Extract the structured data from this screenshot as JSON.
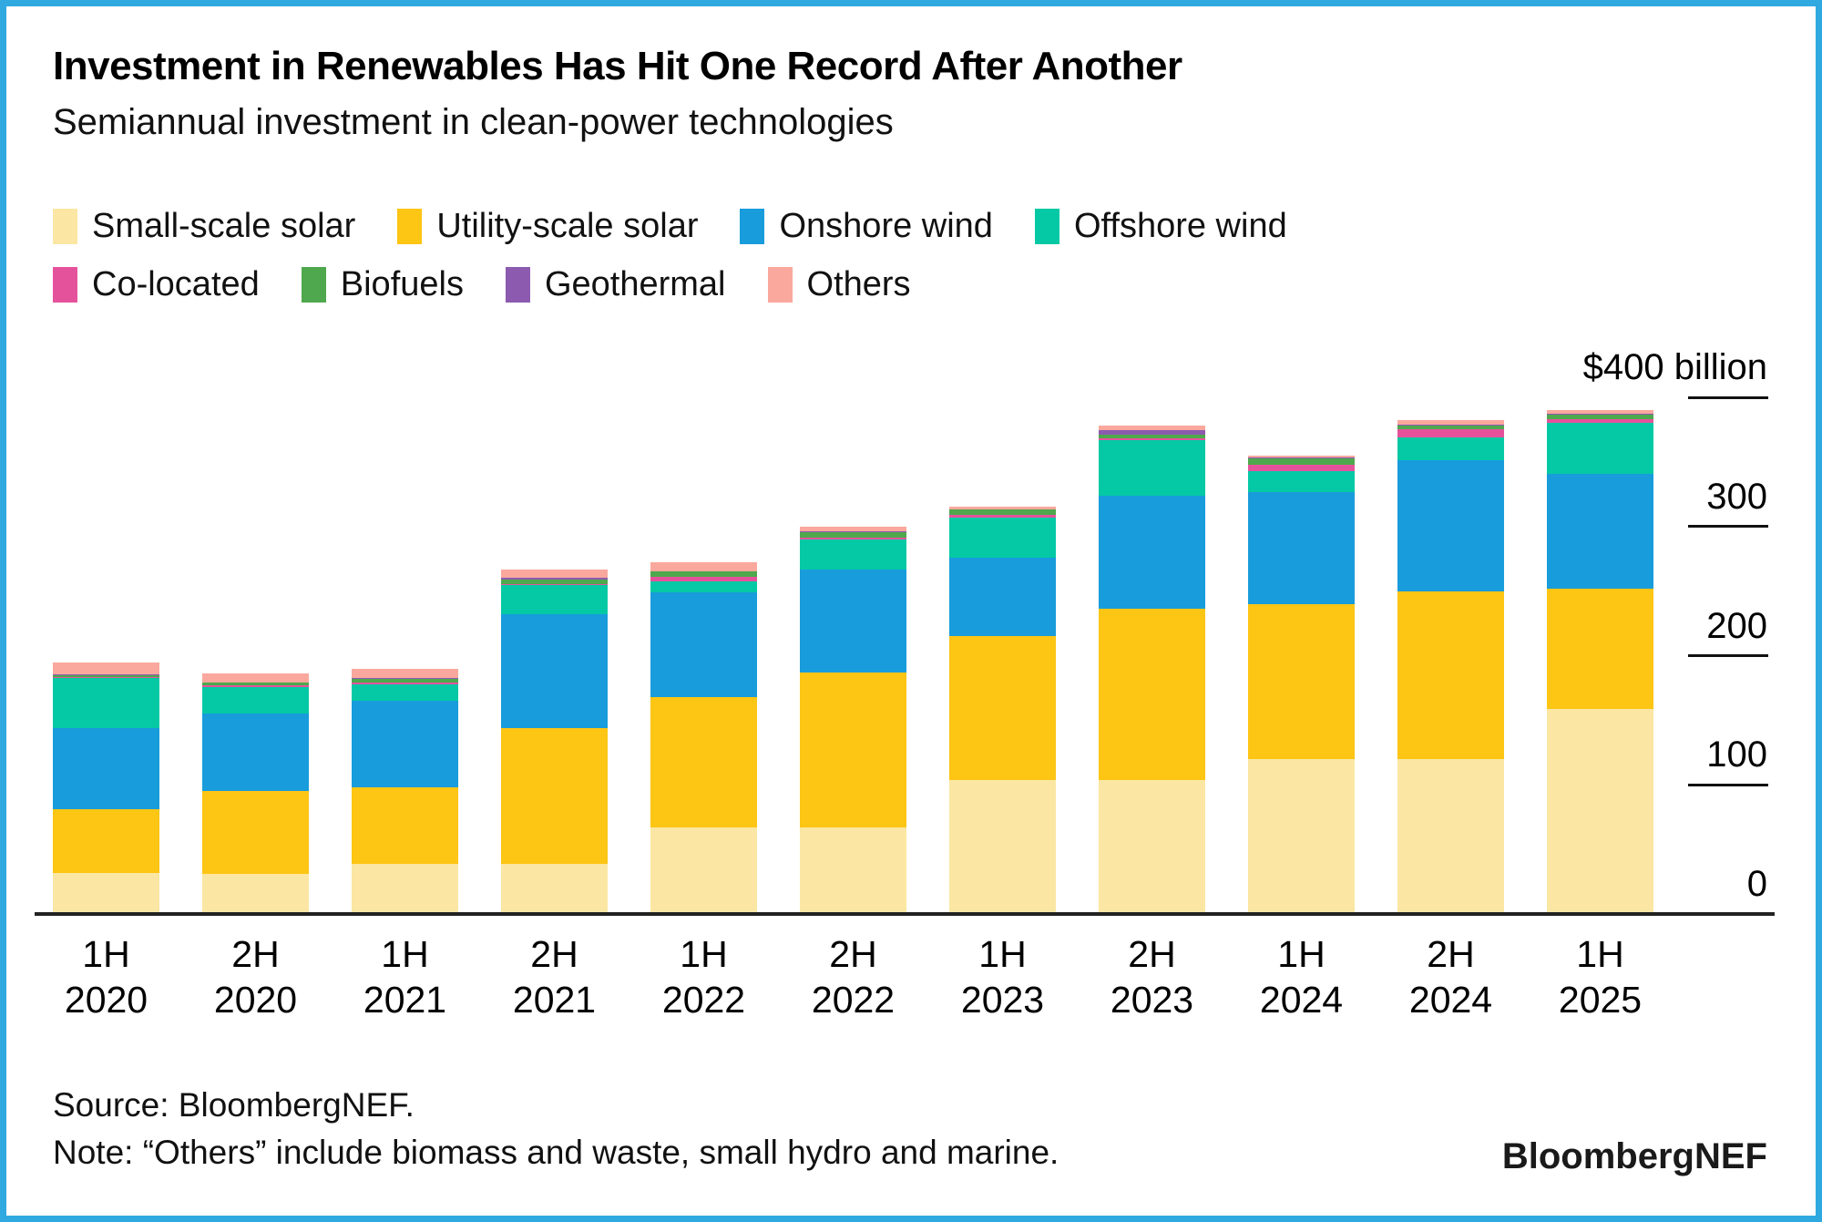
{
  "header": {
    "title": "Investment in Renewables Has Hit One Record After Another",
    "subtitle": "Semiannual investment in clean-power technologies"
  },
  "legend": {
    "rows": [
      [
        "Small-scale solar",
        "Utility-scale solar",
        "Onshore wind",
        "Offshore wind"
      ],
      [
        "Co-located",
        "Biofuels",
        "Geothermal",
        "Others"
      ]
    ]
  },
  "chart_data": {
    "type": "bar",
    "stacked": true,
    "unit": "$ billion",
    "title": "Investment in Renewables Has Hit One Record After Another",
    "subtitle": "Semiannual investment in clean-power technologies",
    "categories": [
      "1H 2020",
      "2H 2020",
      "1H 2021",
      "2H 2021",
      "1H 2022",
      "2H 2022",
      "1H 2023",
      "2H 2023",
      "1H 2024",
      "2H 2024",
      "1H 2025"
    ],
    "series": [
      {
        "name": "Small-scale solar",
        "color": "#FBE7A3",
        "values": [
          32,
          31,
          39,
          39,
          67,
          67,
          104,
          104,
          120,
          120,
          159
        ]
      },
      {
        "name": "Utility-scale solar",
        "color": "#FDC514",
        "values": [
          49,
          64,
          59,
          105,
          101,
          120,
          111,
          132,
          120,
          130,
          93
        ]
      },
      {
        "name": "Onshore wind",
        "color": "#189CDB",
        "values": [
          63,
          60,
          67,
          88,
          81,
          80,
          61,
          88,
          87,
          101,
          89
        ]
      },
      {
        "name": "Offshore wind",
        "color": "#05C9A5",
        "values": [
          39,
          21,
          13,
          23,
          8.5,
          23,
          31,
          43,
          16,
          18,
          39
        ]
      },
      {
        "name": "Co-located",
        "color": "#E5529C",
        "values": [
          0.5,
          1,
          1.5,
          0.5,
          3.5,
          1.5,
          2,
          1,
          5,
          6,
          3
        ]
      },
      {
        "name": "Biofuels",
        "color": "#4FA84D",
        "values": [
          1.5,
          2,
          2.5,
          3.5,
          4,
          4,
          4,
          3,
          5,
          3.5,
          3.5
        ]
      },
      {
        "name": "Geothermal",
        "color": "#8C5BB0",
        "values": [
          0.5,
          0.5,
          0.5,
          1.5,
          0.5,
          0.5,
          0.5,
          4,
          0.5,
          0.5,
          0.5
        ]
      },
      {
        "name": "Others",
        "color": "#FAA89D",
        "values": [
          9,
          7,
          7,
          6.5,
          7,
          4,
          2,
          3,
          1.5,
          3.5,
          3.5
        ]
      }
    ],
    "yaxis": {
      "ylim": [
        0,
        400
      ],
      "ticks": [
        {
          "value": 0,
          "label": "0"
        },
        {
          "value": 100,
          "label": "100"
        },
        {
          "value": 200,
          "label": "200"
        },
        {
          "value": 300,
          "label": "300"
        },
        {
          "value": 400,
          "label": "$400 billion"
        }
      ],
      "position": "right",
      "grid": false
    },
    "legend_position": "top"
  },
  "footer": {
    "source": "Source: BloombergNEF.",
    "note": "Note: “Others” include biomass and waste, small hydro and marine.",
    "logo": "BloombergNEF"
  }
}
